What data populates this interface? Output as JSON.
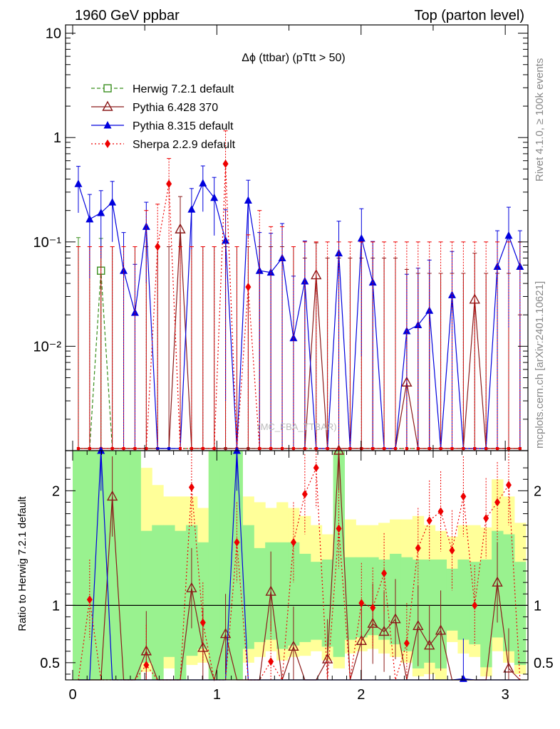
{
  "header": {
    "left": "1960 GeV ppbar",
    "right": "Top (parton level)"
  },
  "side_labels": {
    "rivet": "Rivet 4.1.0, ≥ 100k events",
    "mcplots": "mcplots.cern.ch [arXiv:2401.10621]"
  },
  "watermark": "(MC_FBA_TTBAR)",
  "colors": {
    "herwig": "#3a8f1e",
    "pythia6": "#8b1a1a",
    "pythia8": "#0000dd",
    "sherpa": "#ee0000",
    "band_inner": "#99f28f",
    "band_outer": "#ffff99"
  },
  "chart_data": [
    {
      "type": "line",
      "title": "Δϕ (ttbar) (pTtt > 50)",
      "xlabel": "",
      "ylabel": "",
      "yscale": "log",
      "xlim": [
        0,
        3.1416
      ],
      "ylim": [
        0.001,
        12
      ],
      "y_ticks": [
        {
          "v": 0.01,
          "label": "10⁻²"
        },
        {
          "v": 0.1,
          "label": "10⁻¹"
        },
        {
          "v": 1,
          "label": "1"
        },
        {
          "v": 10,
          "label": "10"
        }
      ],
      "x": [
        0.0393,
        0.1178,
        0.1963,
        0.2749,
        0.3534,
        0.432,
        0.5105,
        0.589,
        0.6676,
        0.7461,
        0.8247,
        0.9032,
        0.9817,
        1.0603,
        1.1388,
        1.2174,
        1.2959,
        1.3744,
        1.453,
        1.5315,
        1.6101,
        1.6886,
        1.7671,
        1.8457,
        1.9242,
        2.0028,
        2.0813,
        2.1598,
        2.2384,
        2.3169,
        2.3955,
        2.474,
        2.5525,
        2.6311,
        2.7096,
        2.7882,
        2.8667,
        2.9452,
        3.0238,
        3.1023
      ],
      "series": [
        {
          "name": "Herwig 7.2.1 default",
          "marker": "open-square",
          "line": "dashed",
          "values": [
            0,
            0,
            0.053,
            0,
            0,
            0,
            0,
            0,
            0,
            0,
            0,
            0,
            0,
            0,
            0,
            0,
            0,
            0,
            0,
            0,
            0,
            0,
            0,
            0,
            0,
            0,
            0,
            0,
            0,
            0,
            0,
            0,
            0,
            0,
            0,
            0,
            0,
            0,
            0,
            0
          ],
          "errors": [
            0.11,
            0,
            0.055,
            0,
            0,
            0,
            0,
            0,
            0,
            0,
            0,
            0,
            0,
            0,
            0,
            0,
            0,
            0,
            0,
            0,
            0,
            0,
            0,
            0,
            0,
            0,
            0,
            0,
            0,
            0,
            0,
            0,
            0,
            0,
            0,
            0,
            0,
            0,
            0,
            0
          ]
        },
        {
          "name": "Pythia 6.428 370",
          "marker": "open-triangle",
          "line": "solid",
          "values": [
            0,
            0,
            0,
            0,
            0,
            0,
            0,
            0,
            0,
            0.132,
            0,
            0,
            0,
            0,
            0,
            0,
            0,
            0,
            0,
            0,
            0,
            0.048,
            0,
            0,
            0,
            0,
            0,
            0,
            0,
            0.0045,
            0,
            0,
            0,
            0,
            0,
            0.028,
            0,
            0,
            0,
            0
          ],
          "errors": [
            0.09,
            0.09,
            0.09,
            0.09,
            0.09,
            0.09,
            0.09,
            0.09,
            0.09,
            0.14,
            0.09,
            0.09,
            0.09,
            0.09,
            0.09,
            0.09,
            0.09,
            0.09,
            0.09,
            0.09,
            0.07,
            0.05,
            0.07,
            0.07,
            0.07,
            0.07,
            0.07,
            0.07,
            0.07,
            0.05,
            0.05,
            0.05,
            0.05,
            0.05,
            0.05,
            0.05,
            0.05,
            0.05,
            0.05,
            0.02
          ]
        },
        {
          "name": "Pythia 8.315 default",
          "marker": "filled-triangle",
          "line": "solid",
          "values": [
            0.36,
            0.165,
            0.19,
            0.24,
            0.053,
            0.021,
            0.14,
            0,
            0,
            0,
            0.205,
            0.365,
            0.265,
            0.103,
            0,
            0.25,
            0.053,
            0.051,
            0.07,
            0.012,
            0.042,
            0,
            0,
            0.078,
            0,
            0.108,
            0.041,
            0,
            0,
            0.014,
            0.016,
            0.022,
            0,
            0.031,
            0,
            0,
            0,
            0.058,
            0.115,
            0.058
          ],
          "errors": [
            0.17,
            0.12,
            0.12,
            0.14,
            0.07,
            0.04,
            0.1,
            0,
            0,
            0,
            0.12,
            0.17,
            0.15,
            0.1,
            0,
            0.14,
            0.07,
            0.07,
            0.08,
            0.035,
            0.06,
            0,
            0,
            0.08,
            0,
            0.1,
            0.06,
            0,
            0,
            0.035,
            0.04,
            0.045,
            0,
            0.05,
            0,
            0,
            0,
            0.07,
            0.1,
            0.07
          ]
        },
        {
          "name": "Sherpa 2.2.9 default",
          "marker": "filled-diamond",
          "line": "dotted",
          "values": [
            0,
            0,
            0,
            0,
            0,
            0,
            0,
            0.09,
            0.36,
            0,
            0,
            0,
            0,
            0.56,
            0,
            0.037,
            0,
            0,
            0,
            0,
            0,
            0,
            0,
            0,
            0,
            0,
            0,
            0,
            0,
            0,
            0,
            0,
            0,
            0,
            0,
            0,
            0,
            0,
            0,
            0
          ],
          "errors": [
            0.09,
            0.09,
            0.09,
            0.09,
            0.09,
            0.09,
            0.2,
            0.14,
            0.27,
            0.09,
            0.09,
            0.09,
            0.09,
            0.6,
            0.09,
            0.08,
            0.2,
            0.14,
            0.14,
            0.09,
            0.1,
            0.1,
            0.1,
            0.1,
            0.1,
            0.1,
            0.1,
            0.1,
            0.1,
            0.1,
            0.1,
            0.1,
            0.1,
            0.1,
            0.1,
            0.1,
            0.1,
            0.1,
            0.1,
            0.1
          ]
        }
      ]
    },
    {
      "type": "line",
      "title": "",
      "xlabel": "",
      "ylabel": "Ratio to Herwig 7.2.1 default",
      "xlim": [
        0,
        3.1416
      ],
      "ylim": [
        0.35,
        2.35
      ],
      "x_ticks": [
        0,
        1,
        2,
        3
      ],
      "y_ticks": [
        0.5,
        1,
        2
      ],
      "reference": 1,
      "band_outer": [
        [
          0.35,
          2.35
        ],
        [
          0.5,
          1.35
        ],
        [
          0.35,
          2.35
        ],
        [
          0.35,
          2.35
        ],
        [
          0.35,
          2.35
        ],
        [
          0.35,
          2.35
        ],
        [
          0.42,
          2.2
        ],
        [
          0.35,
          2.05
        ],
        [
          0.45,
          1.95
        ],
        [
          0.35,
          1.95
        ],
        [
          0.48,
          1.95
        ],
        [
          0.5,
          1.85
        ],
        [
          0.35,
          2.35
        ],
        [
          0.35,
          2.35
        ],
        [
          0.35,
          2.35
        ],
        [
          0.5,
          1.95
        ],
        [
          0.55,
          1.9
        ],
        [
          0.6,
          1.85
        ],
        [
          0.52,
          1.9
        ],
        [
          0.55,
          1.85
        ],
        [
          0.56,
          1.78
        ],
        [
          0.6,
          1.7
        ],
        [
          0.52,
          1.62
        ],
        [
          0.45,
          2.35
        ],
        [
          0.58,
          1.75
        ],
        [
          0.6,
          1.7
        ],
        [
          0.62,
          1.7
        ],
        [
          0.58,
          1.72
        ],
        [
          0.55,
          1.75
        ],
        [
          0.5,
          1.75
        ],
        [
          0.38,
          1.78
        ],
        [
          0.4,
          1.7
        ],
        [
          0.35,
          1.65
        ],
        [
          0.68,
          1.6
        ],
        [
          0.58,
          1.7
        ],
        [
          0.55,
          1.7
        ],
        [
          0.38,
          1.68
        ],
        [
          0.6,
          2.1
        ],
        [
          0.5,
          1.95
        ],
        [
          0.4,
          1.72
        ]
      ],
      "band_inner": [
        [
          0.35,
          2.35
        ],
        [
          0.35,
          2.35
        ],
        [
          0.35,
          2.35
        ],
        [
          0.35,
          2.35
        ],
        [
          0.35,
          2.35
        ],
        [
          0.35,
          2.35
        ],
        [
          0.5,
          1.65
        ],
        [
          0.35,
          1.7
        ],
        [
          0.55,
          1.7
        ],
        [
          0.35,
          1.65
        ],
        [
          0.56,
          1.7
        ],
        [
          0.62,
          1.55
        ],
        [
          0.35,
          2.35
        ],
        [
          0.35,
          2.35
        ],
        [
          0.35,
          2.35
        ],
        [
          0.62,
          1.7
        ],
        [
          0.68,
          1.5
        ],
        [
          0.7,
          1.55
        ],
        [
          0.62,
          1.55
        ],
        [
          0.65,
          1.55
        ],
        [
          0.68,
          1.45
        ],
        [
          0.7,
          1.38
        ],
        [
          0.64,
          1.4
        ],
        [
          0.55,
          2.35
        ],
        [
          0.7,
          1.42
        ],
        [
          0.72,
          1.42
        ],
        [
          0.74,
          1.42
        ],
        [
          0.7,
          1.4
        ],
        [
          0.66,
          1.45
        ],
        [
          0.6,
          1.42
        ],
        [
          0.45,
          1.4
        ],
        [
          0.5,
          1.4
        ],
        [
          0.45,
          1.4
        ],
        [
          0.78,
          1.32
        ],
        [
          0.7,
          1.4
        ],
        [
          0.66,
          1.38
        ],
        [
          0.46,
          1.4
        ],
        [
          0.72,
          1.65
        ],
        [
          0.6,
          1.62
        ],
        [
          0.48,
          1.38
        ]
      ],
      "series": [
        {
          "name": "Pythia 6.428 370",
          "values": [
            null,
            null,
            null,
            1.95,
            null,
            null,
            0.6,
            null,
            null,
            null,
            1.15,
            0.63,
            null,
            0.75,
            null,
            null,
            null,
            1.12,
            null,
            0.64,
            null,
            null,
            0.53,
            2.35,
            null,
            0.69,
            0.84,
            0.77,
            0.88,
            null,
            0.82,
            0.65,
            0.78,
            null,
            null,
            null,
            null,
            1.2,
            0.45,
            null
          ]
        },
        {
          "name": "Pythia 8.315 default",
          "values": [
            null,
            null,
            2.35,
            null,
            null,
            null,
            null,
            null,
            null,
            null,
            null,
            null,
            null,
            null,
            2.35,
            null,
            null,
            null,
            null,
            null,
            null,
            null,
            null,
            null,
            null,
            null,
            null,
            null,
            null,
            null,
            null,
            null,
            null,
            null,
            0.36,
            null,
            null,
            null,
            null,
            null
          ]
        },
        {
          "name": "Sherpa 2.2.9 default",
          "values": [
            null,
            1.05,
            null,
            null,
            null,
            null,
            0.48,
            null,
            null,
            null,
            2.03,
            0.85,
            null,
            null,
            1.55,
            null,
            null,
            0.51,
            null,
            1.55,
            1.97,
            2.2,
            null,
            1.67,
            null,
            1.02,
            0.98,
            1.28,
            null,
            0.67,
            1.5,
            1.74,
            1.82,
            1.48,
            1.95,
            1.0,
            1.76,
            1.9,
            2.05,
            null
          ]
        }
      ]
    }
  ]
}
